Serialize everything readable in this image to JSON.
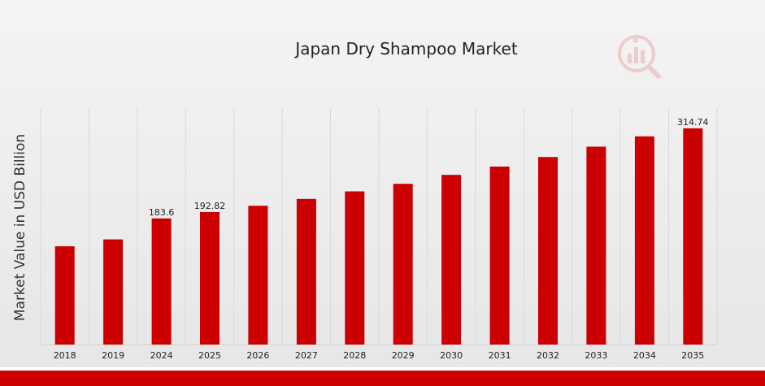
{
  "chart_data": {
    "type": "bar",
    "title": "Japan Dry Shampoo Market",
    "xlabel": "",
    "ylabel": "Market Value in USD Billion",
    "categories": [
      "2018",
      "2019",
      "2024",
      "2025",
      "2026",
      "2027",
      "2028",
      "2029",
      "2030",
      "2031",
      "2032",
      "2033",
      "2034",
      "2035"
    ],
    "values": [
      143.0,
      153.0,
      183.6,
      192.82,
      202.0,
      212.0,
      223.0,
      234.0,
      247.0,
      259.0,
      273.0,
      288.0,
      303.0,
      314.74
    ],
    "data_labels": [
      "",
      "",
      "183.6",
      "192.82",
      "",
      "",
      "",
      "",
      "",
      "",
      "",
      "",
      "",
      "314.74"
    ],
    "ylim": [
      0,
      330
    ],
    "grid": "vertical",
    "legend": "none",
    "colors": {
      "bar": "#cc0000",
      "footer": "#cc0000",
      "logo": "#e8aeb0"
    },
    "logo_icon": "chart-magnifier-logo-icon"
  }
}
